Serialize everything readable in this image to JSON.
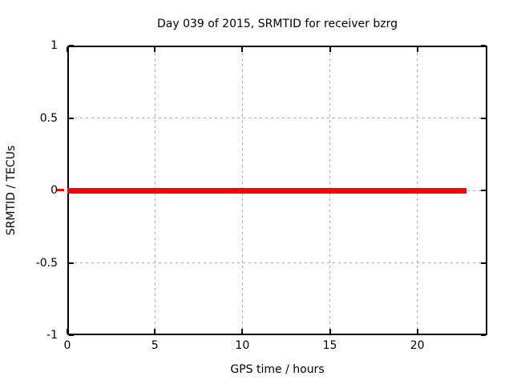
{
  "chart_data": {
    "type": "line",
    "title": "Day 039 of 2015, SRMTID for receiver bzrg",
    "xlabel": "GPS time / hours",
    "ylabel": "SRMTID / TECUs",
    "xlim": [
      0,
      24
    ],
    "ylim": [
      -1,
      1
    ],
    "xticks": [
      0,
      5,
      10,
      15,
      20
    ],
    "yticks": [
      -1,
      -0.5,
      0,
      0.5,
      1
    ],
    "grid": true,
    "legend": "none",
    "series": [
      {
        "name": "SRMTID",
        "color": "#ff0000",
        "points": [
          [
            0,
            0
          ],
          [
            22.8,
            0
          ]
        ]
      }
    ],
    "colors": {
      "background": "#ffffff",
      "border": "#000000",
      "grid": "#a8a8a8",
      "text": "#000000"
    }
  }
}
